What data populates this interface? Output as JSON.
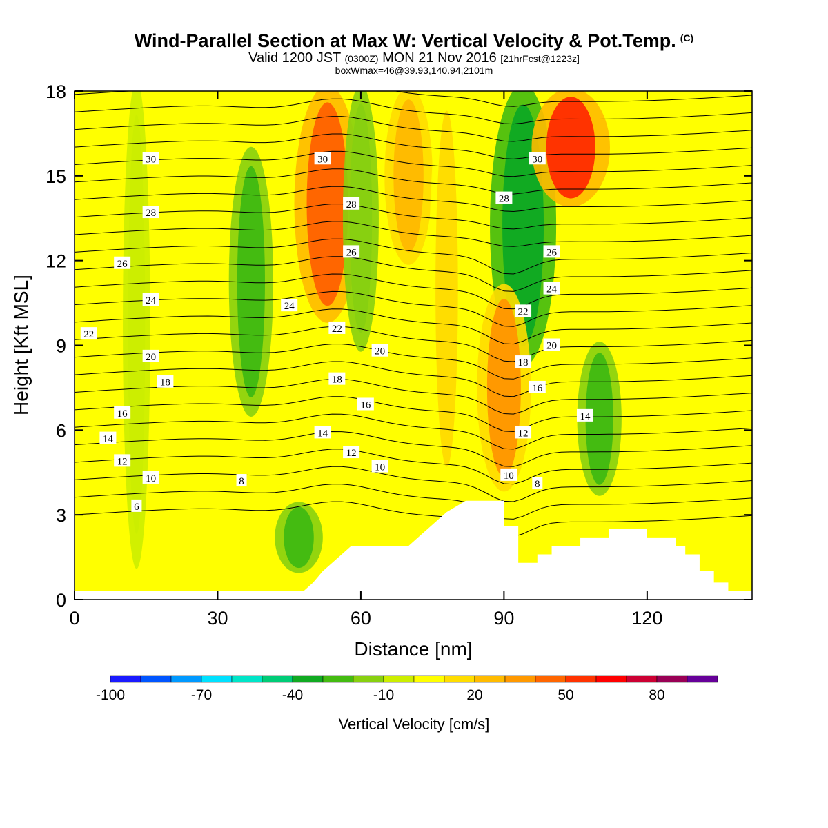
{
  "title": {
    "main": "Wind-Parallel Section at Max W: Vertical Velocity & Pot.Temp.",
    "copyright": "(C)",
    "valid_prefix": "Valid 1200 JST",
    "valid_z": "(0300Z)",
    "valid_date": "MON 21 Nov 2016",
    "fcst": "[21hrFcst@1223z]",
    "box": "boxWmax=46@39.93,140.94,2101m"
  },
  "chart_data": {
    "type": "heatmap",
    "xlabel": "Distance [nm]",
    "ylabel": "Height [Kft MSL]",
    "xlim": [
      0,
      142
    ],
    "ylim": [
      0,
      18
    ],
    "xticks": [
      0,
      30,
      60,
      90,
      120
    ],
    "yticks": [
      0,
      3,
      6,
      9,
      12,
      15,
      18
    ],
    "colorbar": {
      "title": "Vertical Velocity [cm/s]",
      "range": [
        -100,
        100
      ],
      "tick_labels": [
        "-100",
        "-70",
        "-40",
        "-10",
        "20",
        "50",
        "80"
      ],
      "tick_values": [
        -100,
        -70,
        -40,
        -10,
        20,
        50,
        80
      ],
      "colors": [
        "#1a1aff",
        "#0055ff",
        "#0099ff",
        "#00e1ff",
        "#00e5c8",
        "#00cc77",
        "#11aa22",
        "#44bb11",
        "#88d010",
        "#ccee00",
        "#ffff00",
        "#ffdd00",
        "#ffbb00",
        "#ff9900",
        "#ff6600",
        "#ff3300",
        "#ff0000",
        "#cc0033",
        "#990055",
        "#660099"
      ]
    },
    "background_value": 5,
    "velocity_features": [
      {
        "x": 37,
        "y_top": 15.8,
        "y_bottom": 6.7,
        "value": -22
      },
      {
        "x": 47,
        "y_top": 3.4,
        "y_bottom": 1.0,
        "value": -25
      },
      {
        "x": 53,
        "y_top": 18.0,
        "y_bottom": 10.0,
        "value": 40
      },
      {
        "x": 60,
        "y_top": 18.0,
        "y_bottom": 9.0,
        "value": -15
      },
      {
        "x": 70,
        "y_top": 18.0,
        "y_bottom": 12.0,
        "value": 25
      },
      {
        "x": 94,
        "y_top": 18.0,
        "y_bottom": 8.5,
        "value": -40
      },
      {
        "x": 104,
        "y_top": 18.0,
        "y_bottom": 14.0,
        "value": 50
      },
      {
        "x": 90,
        "y_top": 11.0,
        "y_bottom": 4.0,
        "value": 30
      },
      {
        "x": 110,
        "y_top": 9.0,
        "y_bottom": 3.8,
        "value": -22
      },
      {
        "x": 13,
        "y_top": 18.0,
        "y_bottom": 1.5,
        "value": -8
      },
      {
        "x": 78,
        "y_top": 18.0,
        "y_bottom": 4.0,
        "value": 15
      }
    ],
    "terrain": [
      [
        48,
        0.3
      ],
      [
        50,
        0.6
      ],
      [
        52,
        1.0
      ],
      [
        54,
        1.3
      ],
      [
        56,
        1.6
      ],
      [
        58,
        1.9
      ],
      [
        70,
        1.9
      ],
      [
        72,
        2.2
      ],
      [
        74,
        2.5
      ],
      [
        76,
        2.8
      ],
      [
        78,
        3.1
      ],
      [
        82,
        3.5
      ],
      [
        90,
        3.5
      ],
      [
        90,
        2.6
      ],
      [
        93,
        2.6
      ],
      [
        93,
        1.3
      ],
      [
        97,
        1.3
      ],
      [
        97,
        1.6
      ],
      [
        100,
        1.6
      ],
      [
        100,
        1.9
      ],
      [
        106,
        1.9
      ],
      [
        106,
        2.2
      ],
      [
        112,
        2.2
      ],
      [
        112,
        2.5
      ],
      [
        120,
        2.5
      ],
      [
        120,
        2.2
      ],
      [
        126,
        2.2
      ],
      [
        126,
        1.9
      ],
      [
        128,
        1.9
      ],
      [
        128,
        1.6
      ],
      [
        131,
        1.6
      ],
      [
        131,
        1.0
      ],
      [
        134,
        1.0
      ],
      [
        134,
        0.6
      ],
      [
        137,
        0.6
      ],
      [
        137,
        0.3
      ],
      [
        142,
        0.3
      ]
    ],
    "theta_labels": [
      {
        "text": "30",
        "x": 16,
        "y": 15.6
      },
      {
        "text": "30",
        "x": 52,
        "y": 15.6
      },
      {
        "text": "30",
        "x": 97,
        "y": 15.6
      },
      {
        "text": "28",
        "x": 16,
        "y": 13.7
      },
      {
        "text": "28",
        "x": 58,
        "y": 14.0
      },
      {
        "text": "28",
        "x": 90,
        "y": 14.2
      },
      {
        "text": "26",
        "x": 10,
        "y": 11.9
      },
      {
        "text": "26",
        "x": 58,
        "y": 12.3
      },
      {
        "text": "26",
        "x": 100,
        "y": 12.3
      },
      {
        "text": "24",
        "x": 16,
        "y": 10.6
      },
      {
        "text": "24",
        "x": 45,
        "y": 10.4
      },
      {
        "text": "24",
        "x": 100,
        "y": 11.0
      },
      {
        "text": "22",
        "x": 3,
        "y": 9.4
      },
      {
        "text": "22",
        "x": 55,
        "y": 9.6
      },
      {
        "text": "22",
        "x": 94,
        "y": 10.2
      },
      {
        "text": "20",
        "x": 16,
        "y": 8.6
      },
      {
        "text": "20",
        "x": 64,
        "y": 8.8
      },
      {
        "text": "20",
        "x": 100,
        "y": 9.0
      },
      {
        "text": "18",
        "x": 19,
        "y": 7.7
      },
      {
        "text": "18",
        "x": 55,
        "y": 7.8
      },
      {
        "text": "18",
        "x": 94,
        "y": 8.4
      },
      {
        "text": "16",
        "x": 10,
        "y": 6.6
      },
      {
        "text": "16",
        "x": 61,
        "y": 6.9
      },
      {
        "text": "16",
        "x": 97,
        "y": 7.5
      },
      {
        "text": "14",
        "x": 7,
        "y": 5.7
      },
      {
        "text": "14",
        "x": 52,
        "y": 5.9
      },
      {
        "text": "14",
        "x": 107,
        "y": 6.5
      },
      {
        "text": "12",
        "x": 10,
        "y": 4.9
      },
      {
        "text": "12",
        "x": 58,
        "y": 5.2
      },
      {
        "text": "12",
        "x": 94,
        "y": 5.9
      },
      {
        "text": "10",
        "x": 16,
        "y": 4.3
      },
      {
        "text": "10",
        "x": 64,
        "y": 4.7
      },
      {
        "text": "10",
        "x": 91,
        "y": 4.4
      },
      {
        "text": "8",
        "x": 35,
        "y": 4.2
      },
      {
        "text": "8",
        "x": 97,
        "y": 4.1
      },
      {
        "text": "6",
        "x": 13,
        "y": 3.3
      }
    ]
  }
}
